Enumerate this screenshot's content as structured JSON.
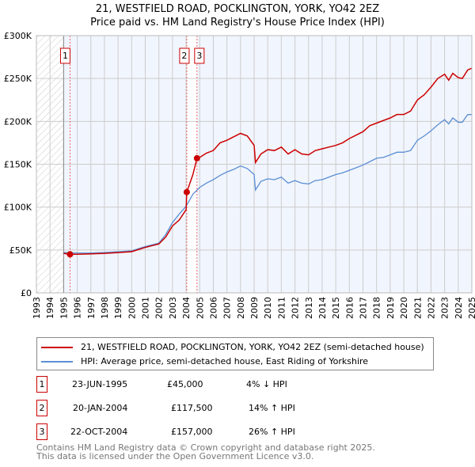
{
  "chart_data": {
    "type": "line",
    "title": "21, WESTFIELD ROAD, POCKLINGTON, YORK, YO42 2EZ",
    "subtitle": "Price paid vs. HM Land Registry's House Price Index (HPI)",
    "xlim": [
      1993,
      2025
    ],
    "ylim": [
      0,
      300000
    ],
    "y_ticks": [
      {
        "v": 0,
        "label": "£0"
      },
      {
        "v": 50000,
        "label": "£50K"
      },
      {
        "v": 100000,
        "label": "£100K"
      },
      {
        "v": 150000,
        "label": "£150K"
      },
      {
        "v": 200000,
        "label": "£200K"
      },
      {
        "v": 250000,
        "label": "£250K"
      },
      {
        "v": 300000,
        "label": "£300K"
      }
    ],
    "x_ticks": [
      "1993",
      "1994",
      "1995",
      "1996",
      "1997",
      "1998",
      "1999",
      "2000",
      "2001",
      "2002",
      "2003",
      "2004",
      "2005",
      "2006",
      "2007",
      "2008",
      "2009",
      "2010",
      "2011",
      "2012",
      "2013",
      "2014",
      "2015",
      "2016",
      "2017",
      "2018",
      "2019",
      "2020",
      "2021",
      "2022",
      "2023",
      "2024",
      "2025"
    ],
    "grid": true,
    "series": [
      {
        "name": "21, WESTFIELD ROAD, POCKLINGTON, YORK, YO42 2EZ (semi-detached house)",
        "color": "#cc0000",
        "x": [
          1995,
          1995.47,
          1996,
          1997,
          1998,
          1999,
          2000,
          2001,
          2002,
          2002.5,
          2003,
          2003.5,
          2004,
          2004.05,
          2004.5,
          2004.8,
          2005,
          2005.5,
          2006,
          2006.5,
          2007,
          2007.5,
          2008,
          2008.5,
          2009,
          2009.1,
          2009.5,
          2010,
          2010.5,
          2011,
          2011.5,
          2012,
          2012.5,
          2013,
          2013.5,
          2014,
          2014.5,
          2015,
          2015.5,
          2016,
          2016.5,
          2017,
          2017.5,
          2018,
          2018.5,
          2019,
          2019.5,
          2020,
          2020.5,
          2021,
          2021.5,
          2022,
          2022.5,
          2023,
          2023.3,
          2023.6,
          2024,
          2024.3,
          2024.7,
          2025
        ],
        "y": [
          46,
          45,
          45,
          45.5,
          46,
          47,
          48,
          53,
          57,
          65,
          78,
          85,
          97,
          117.5,
          138,
          157,
          158,
          163,
          166,
          175,
          178,
          182,
          186,
          183,
          172,
          152,
          162,
          167,
          166,
          170,
          162,
          167,
          162,
          161,
          166,
          168,
          170,
          172,
          175,
          180,
          184,
          188,
          195,
          198,
          201,
          204,
          208,
          208,
          212,
          225,
          231,
          240,
          250,
          255,
          248,
          256,
          251,
          250,
          260,
          262
        ]
      },
      {
        "name": "HPI: Average price, semi-detached house, East Riding of Yorkshire",
        "color": "#5b8fd4",
        "x": [
          1995,
          1996,
          1997,
          1998,
          1999,
          2000,
          2001,
          2002,
          2002.5,
          2003,
          2003.5,
          2004,
          2004.5,
          2005,
          2005.5,
          2006,
          2006.5,
          2007,
          2007.5,
          2008,
          2008.5,
          2009,
          2009.1,
          2009.5,
          2010,
          2010.5,
          2011,
          2011.5,
          2012,
          2012.5,
          2013,
          2013.5,
          2014,
          2014.5,
          2015,
          2015.5,
          2016,
          2016.5,
          2017,
          2017.5,
          2018,
          2018.5,
          2019,
          2019.5,
          2020,
          2020.5,
          2021,
          2021.5,
          2022,
          2022.5,
          2023,
          2023.3,
          2023.6,
          2024,
          2024.3,
          2024.7,
          2025
        ],
        "y": [
          47,
          46.5,
          46.5,
          47,
          48,
          49,
          54,
          58,
          68,
          82,
          92,
          101,
          115,
          123,
          128,
          132,
          137,
          141,
          144,
          148,
          145,
          138,
          120,
          130,
          133,
          132,
          135,
          128,
          131,
          128,
          127,
          131,
          132,
          135,
          138,
          140,
          143,
          146,
          149,
          153,
          157,
          158,
          161,
          164,
          164,
          166,
          178,
          183,
          189,
          196,
          202,
          197,
          204,
          199,
          199,
          208,
          208
        ]
      }
    ],
    "y_units": "thousands GBP",
    "sales": [
      {
        "n": "1",
        "x": 1995.47,
        "y": 45,
        "date": "23-JUN-1995",
        "price": "£45,000",
        "hpi": "4% ↓ HPI"
      },
      {
        "n": "2",
        "x": 2004.05,
        "y": 117.5,
        "date": "20-JAN-2004",
        "price": "£117,500",
        "hpi": "14% ↑ HPI"
      },
      {
        "n": "3",
        "x": 2004.8,
        "y": 157,
        "date": "22-OCT-2004",
        "price": "£157,000",
        "hpi": "26% ↑ HPI"
      }
    ],
    "legend_position": "bottom"
  },
  "footer": [
    "Contains HM Land Registry data © Crown copyright and database right 2025.",
    "This data is licensed under the Open Government Licence v3.0."
  ]
}
